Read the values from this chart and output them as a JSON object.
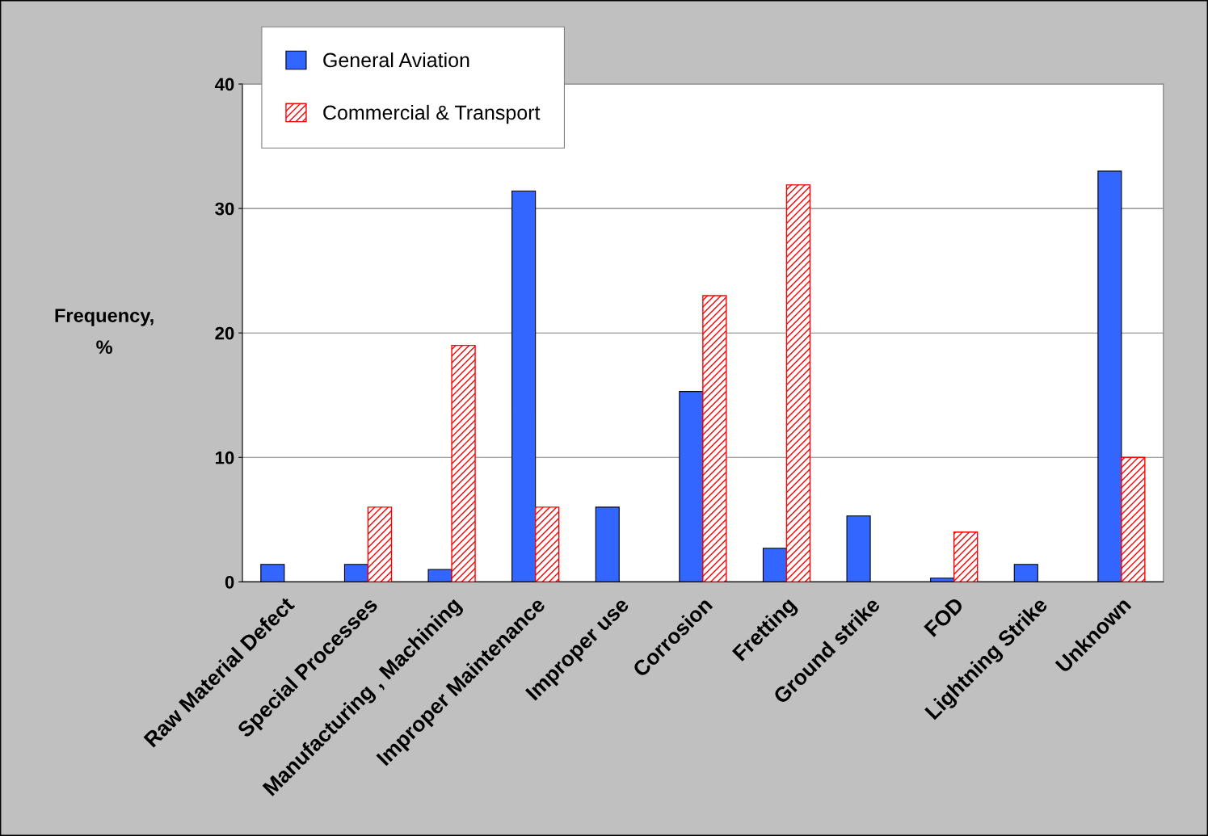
{
  "chart_data": {
    "type": "bar",
    "ylabel": "Frequency,\n%",
    "categories": [
      "Raw Material Defect",
      "Special Processes",
      "Manufacturing , Machining",
      "Improper Maintenance",
      "Improper use",
      "Corrosion",
      "Fretting",
      "Ground strike",
      "FOD",
      "Lightning Strike",
      "Unknown"
    ],
    "series": [
      {
        "name": "General Aviation",
        "color": "#3366ff",
        "values": [
          1.4,
          1.4,
          1.0,
          31.4,
          6.0,
          15.3,
          2.7,
          5.3,
          0.3,
          1.4,
          33.0
        ]
      },
      {
        "name": "Commercial & Transport",
        "color": "#ff0000",
        "values": [
          null,
          6.0,
          19.0,
          6.0,
          null,
          23.0,
          31.9,
          null,
          4.0,
          null,
          10.0
        ]
      }
    ],
    "ylim": [
      0,
      40
    ],
    "yticks": [
      0,
      10,
      20,
      30,
      40
    ],
    "grid": "y",
    "legend": "top left"
  }
}
